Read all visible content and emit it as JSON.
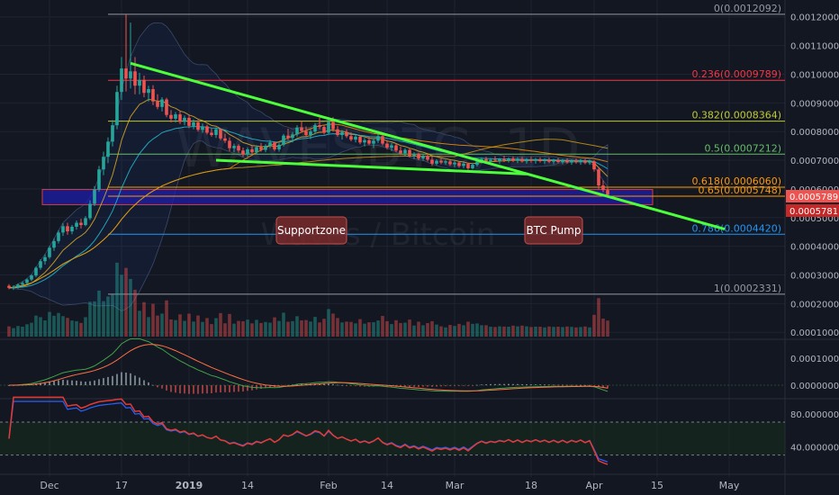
{
  "chart_data": {
    "type": "candlestick",
    "title": "WAVESBTC, 1D",
    "watermark": {
      "symbol": "WAVESBTC, 1D",
      "description": "Waves / Bitcoin"
    },
    "colors": {
      "background": "#131722",
      "up": "#26a69a",
      "down": "#ef5350",
      "trendline": "#4cff3a",
      "support_zone": "#1e1ea8",
      "support_zone_border": "#d04040",
      "annotation_bg": "#7a2a2a"
    },
    "x_ticks": [
      {
        "label": "Dec",
        "date": "2018-12-01"
      },
      {
        "label": "17",
        "date": "2018-12-17"
      },
      {
        "label": "2019",
        "date": "2019-01-01"
      },
      {
        "label": "14",
        "date": "2019-01-14"
      },
      {
        "label": "Feb",
        "date": "2019-02-01"
      },
      {
        "label": "14",
        "date": "2019-02-14"
      },
      {
        "label": "Mar",
        "date": "2019-03-01"
      },
      {
        "label": "18",
        "date": "2019-03-18"
      },
      {
        "label": "Apr",
        "date": "2019-04-01"
      },
      {
        "label": "15",
        "date": "2019-04-15"
      },
      {
        "label": "May",
        "date": "2019-05-01"
      }
    ],
    "price_axis": {
      "range": [
        8.5e-05,
        0.00124
      ],
      "ticks": [
        "0.0012000",
        "0.0011000",
        "0.0010000",
        "0.0009000",
        "0.0008000",
        "0.0007000",
        "0.0006000",
        "0.0005000",
        "0.0004000",
        "0.0003000",
        "0.0002000",
        "0.0001000"
      ],
      "current_price_labels": [
        "0.0005789",
        "0.0005781"
      ]
    },
    "fibonacci": [
      {
        "label": "0(0.0012092)",
        "value": 0.0012092,
        "color": "#9598a1"
      },
      {
        "label": "0.236(0.0009789)",
        "value": 0.0009789,
        "color": "#f23645"
      },
      {
        "label": "0.382(0.0008364)",
        "value": 0.0008364,
        "color": "#c0ca33"
      },
      {
        "label": "0.5(0.0007212)",
        "value": 0.0007212,
        "color": "#66bb6a"
      },
      {
        "label": "0.618(0.0006060)",
        "value": 0.000606,
        "color": "#ff9800"
      },
      {
        "label": "0.65(0.0005748)",
        "value": 0.0005748,
        "color": "#ff9800"
      },
      {
        "label": "0.786(0.0004420)",
        "value": 0.000442,
        "color": "#2196f3"
      },
      {
        "label": "1(0.0002331)",
        "value": 0.0002331,
        "color": "#9598a1"
      }
    ],
    "annotations": [
      {
        "text": "Supportzone"
      },
      {
        "text": "BTC Pump"
      }
    ],
    "support_zone": {
      "from": 0.000545,
      "to": 0.000598
    },
    "trendlines": [
      {
        "name": "upper",
        "p1": {
          "date": "2018-12-19",
          "price": 0.001038
        },
        "p2": {
          "date": "2019-04-30",
          "price": 0.00046
        }
      },
      {
        "name": "lower",
        "p1": {
          "date": "2019-01-07",
          "price": 0.0007
        },
        "p2": {
          "date": "2019-03-17",
          "price": 0.000652
        }
      }
    ],
    "candles": [
      [
        "2018-11-22",
        0.000262,
        0.000268,
        0.00025,
        0.000255
      ],
      [
        "2018-11-23",
        0.000255,
        0.000264,
        0.000248,
        0.000258
      ],
      [
        "2018-11-24",
        0.000258,
        0.00027,
        0.000252,
        0.000266
      ],
      [
        "2018-11-25",
        0.000266,
        0.000278,
        0.00026,
        0.000272
      ],
      [
        "2018-11-26",
        0.000272,
        0.000288,
        0.000268,
        0.000284
      ],
      [
        "2018-11-27",
        0.000284,
        0.000302,
        0.000278,
        0.000298
      ],
      [
        "2018-11-28",
        0.000298,
        0.00033,
        0.000292,
        0.000325
      ],
      [
        "2018-11-29",
        0.000325,
        0.000355,
        0.000318,
        0.000348
      ],
      [
        "2018-11-30",
        0.000348,
        0.000372,
        0.000336,
        0.000362
      ],
      [
        "2018-12-01",
        0.000362,
        0.000402,
        0.000356,
        0.000395
      ],
      [
        "2018-12-02",
        0.000395,
        0.000428,
        0.000384,
        0.000418
      ],
      [
        "2018-12-03",
        0.000418,
        0.000456,
        0.00041,
        0.000448
      ],
      [
        "2018-12-04",
        0.000448,
        0.00048,
        0.000436,
        0.00047
      ],
      [
        "2018-12-05",
        0.00047,
        0.000482,
        0.00044,
        0.000452
      ],
      [
        "2018-12-06",
        0.000452,
        0.000474,
        0.000442,
        0.000468
      ],
      [
        "2018-12-07",
        0.000468,
        0.00049,
        0.000458,
        0.000482
      ],
      [
        "2018-12-08",
        0.000482,
        0.000496,
        0.000462,
        0.000474
      ],
      [
        "2018-12-09",
        0.000474,
        0.000505,
        0.00047,
        0.000498
      ],
      [
        "2018-12-10",
        0.000498,
        0.00056,
        0.000492,
        0.000548
      ],
      [
        "2018-12-11",
        0.000548,
        0.00061,
        0.00054,
        0.000598
      ],
      [
        "2018-12-12",
        0.000598,
        0.00068,
        0.00059,
        0.000668
      ],
      [
        "2018-12-13",
        0.000668,
        0.00073,
        0.000648,
        0.000712
      ],
      [
        "2018-12-14",
        0.000712,
        0.00078,
        0.00069,
        0.000765
      ],
      [
        "2018-12-15",
        0.000765,
        0.00084,
        0.000748,
        0.000822
      ],
      [
        "2018-12-16",
        0.000822,
        0.00096,
        0.000808,
        0.000938
      ],
      [
        "2018-12-17",
        0.000938,
        0.00106,
        0.00091,
        0.00102
      ],
      [
        "2018-12-18",
        0.00102,
        0.001209,
        0.00094,
        0.000985
      ],
      [
        "2018-12-19",
        0.000985,
        0.00118,
        0.00095,
        0.00101
      ],
      [
        "2018-12-20",
        0.00101,
        0.00106,
        0.00093,
        0.00096
      ],
      [
        "2018-12-21",
        0.00096,
        0.001005,
        0.00093,
        0.00098
      ],
      [
        "2018-12-22",
        0.00098,
        0.000995,
        0.00092,
        0.000935
      ],
      [
        "2018-12-23",
        0.000935,
        0.00096,
        0.000905,
        0.000948
      ],
      [
        "2018-12-24",
        0.000948,
        0.000962,
        0.000892,
        0.000905
      ],
      [
        "2018-12-25",
        0.000905,
        0.00093,
        0.000878,
        0.000886
      ],
      [
        "2018-12-26",
        0.000886,
        0.00092,
        0.00087,
        0.000912
      ],
      [
        "2018-12-27",
        0.000912,
        0.000918,
        0.00085,
        0.000858
      ],
      [
        "2018-12-28",
        0.000858,
        0.000875,
        0.000832,
        0.000845
      ],
      [
        "2018-12-29",
        0.000845,
        0.000868,
        0.000832,
        0.00086
      ],
      [
        "2018-12-30",
        0.00086,
        0.000872,
        0.000826,
        0.000834
      ],
      [
        "2018-12-31",
        0.000834,
        0.000856,
        0.000822,
        0.000848
      ],
      [
        "2019-01-01",
        0.000848,
        0.000858,
        0.000812,
        0.00082
      ],
      [
        "2019-01-02",
        0.00082,
        0.000842,
        0.000808,
        0.000832
      ],
      [
        "2019-01-03",
        0.000832,
        0.00084,
        0.0008,
        0.000806
      ],
      [
        "2019-01-04",
        0.000806,
        0.000828,
        0.000796,
        0.000818
      ],
      [
        "2019-01-05",
        0.000818,
        0.000824,
        0.00079,
        0.000796
      ],
      [
        "2019-01-06",
        0.000796,
        0.00081,
        0.000782,
        0.000788
      ],
      [
        "2019-01-07",
        0.000788,
        0.000815,
        0.000778,
        0.000808
      ],
      [
        "2019-01-08",
        0.000808,
        0.000812,
        0.00077,
        0.000776
      ],
      [
        "2019-01-09",
        0.000776,
        0.000792,
        0.00076,
        0.000768
      ],
      [
        "2019-01-10",
        0.000768,
        0.00078,
        0.000732,
        0.000742
      ],
      [
        "2019-01-11",
        0.000742,
        0.000758,
        0.000728,
        0.00075
      ],
      [
        "2019-01-12",
        0.00075,
        0.000756,
        0.000726,
        0.000734
      ],
      [
        "2019-01-13",
        0.000734,
        0.000744,
        0.000712,
        0.00072
      ],
      [
        "2019-01-14",
        0.00072,
        0.000745,
        0.000712,
        0.000738
      ],
      [
        "2019-01-15",
        0.000738,
        0.00075,
        0.000722,
        0.000728
      ],
      [
        "2019-01-16",
        0.000728,
        0.000752,
        0.00072,
        0.000746
      ],
      [
        "2019-01-17",
        0.000746,
        0.00076,
        0.00073,
        0.000736
      ],
      [
        "2019-01-18",
        0.000736,
        0.000756,
        0.000728,
        0.00075
      ],
      [
        "2019-01-19",
        0.00075,
        0.00077,
        0.000742,
        0.000762
      ],
      [
        "2019-01-20",
        0.000762,
        0.000766,
        0.000732,
        0.000738
      ],
      [
        "2019-01-21",
        0.000738,
        0.00076,
        0.00073,
        0.000754
      ],
      [
        "2019-01-22",
        0.000754,
        0.000792,
        0.000748,
        0.000786
      ],
      [
        "2019-01-23",
        0.000786,
        0.00081,
        0.00077,
        0.000778
      ],
      [
        "2019-01-24",
        0.000778,
        0.000798,
        0.000762,
        0.00079
      ],
      [
        "2019-01-25",
        0.00079,
        0.000822,
        0.000782,
        0.000814
      ],
      [
        "2019-01-26",
        0.000814,
        0.000836,
        0.000796,
        0.000802
      ],
      [
        "2019-01-27",
        0.000802,
        0.000818,
        0.00078,
        0.000788
      ],
      [
        "2019-01-28",
        0.000788,
        0.000808,
        0.000774,
        0.0008
      ],
      [
        "2019-01-29",
        0.0008,
        0.00083,
        0.00079,
        0.000822
      ],
      [
        "2019-01-30",
        0.000822,
        0.000848,
        0.000808,
        0.000816
      ],
      [
        "2019-01-31",
        0.000816,
        0.000824,
        0.00079,
        0.000796
      ],
      [
        "2019-02-01",
        0.000796,
        0.000842,
        0.00079,
        0.000834
      ],
      [
        "2019-02-02",
        0.000834,
        0.00085,
        0.0008,
        0.000808
      ],
      [
        "2019-02-03",
        0.000808,
        0.00082,
        0.000782,
        0.000788
      ],
      [
        "2019-02-04",
        0.000788,
        0.000805,
        0.000772,
        0.000798
      ],
      [
        "2019-02-05",
        0.000798,
        0.000808,
        0.000778,
        0.000784
      ],
      [
        "2019-02-06",
        0.000784,
        0.000798,
        0.000766,
        0.000772
      ],
      [
        "2019-02-07",
        0.000772,
        0.00079,
        0.000762,
        0.000782
      ],
      [
        "2019-02-08",
        0.000782,
        0.000788,
        0.000756,
        0.000762
      ],
      [
        "2019-02-09",
        0.000762,
        0.000778,
        0.000748,
        0.00077
      ],
      [
        "2019-02-10",
        0.00077,
        0.000782,
        0.000752,
        0.000758
      ],
      [
        "2019-02-11",
        0.000758,
        0.000776,
        0.000742,
        0.000768
      ],
      [
        "2019-02-12",
        0.000768,
        0.000792,
        0.00076,
        0.000784
      ],
      [
        "2019-02-13",
        0.000784,
        0.00079,
        0.000752,
        0.000758
      ],
      [
        "2019-02-14",
        0.000758,
        0.00077,
        0.000738,
        0.000744
      ],
      [
        "2019-02-15",
        0.000744,
        0.00076,
        0.000732,
        0.000752
      ],
      [
        "2019-02-16",
        0.000752,
        0.000758,
        0.000728,
        0.000734
      ],
      [
        "2019-02-17",
        0.000734,
        0.000748,
        0.000718,
        0.000724
      ],
      [
        "2019-02-18",
        0.000724,
        0.000742,
        0.000714,
        0.000736
      ],
      [
        "2019-02-19",
        0.000736,
        0.00074,
        0.00071,
        0.000716
      ],
      [
        "2019-02-20",
        0.000716,
        0.000728,
        0.000704,
        0.000722
      ],
      [
        "2019-02-21",
        0.000722,
        0.000726,
        0.0007,
        0.000706
      ],
      [
        "2019-02-22",
        0.000706,
        0.00072,
        0.000698,
        0.000714
      ],
      [
        "2019-02-23",
        0.000714,
        0.000722,
        0.000696,
        0.000702
      ],
      [
        "2019-02-24",
        0.000702,
        0.000712,
        0.00068,
        0.000688
      ],
      [
        "2019-02-25",
        0.000688,
        0.000704,
        0.000682,
        0.000698
      ],
      [
        "2019-02-26",
        0.000698,
        0.000706,
        0.000686,
        0.000692
      ],
      [
        "2019-02-27",
        0.000692,
        0.000702,
        0.000684,
        0.000696
      ],
      [
        "2019-02-28",
        0.000696,
        0.0007,
        0.00068,
        0.000686
      ],
      [
        "2019-03-01",
        0.000686,
        0.000698,
        0.000676,
        0.000692
      ],
      [
        "2019-03-02",
        0.000692,
        0.000696,
        0.000674,
        0.00068
      ],
      [
        "2019-03-03",
        0.00068,
        0.000694,
        0.000672,
        0.000688
      ],
      [
        "2019-03-04",
        0.000688,
        0.000692,
        0.000666,
        0.000672
      ],
      [
        "2019-03-05",
        0.000672,
        0.00069,
        0.000668,
        0.000684
      ],
      [
        "2019-03-06",
        0.000684,
        0.000702,
        0.000678,
        0.000696
      ],
      [
        "2019-03-07",
        0.000696,
        0.00071,
        0.000688,
        0.000704
      ],
      [
        "2019-03-08",
        0.000704,
        0.000712,
        0.00069,
        0.000696
      ],
      [
        "2019-03-09",
        0.000696,
        0.000708,
        0.00069,
        0.000702
      ],
      [
        "2019-03-10",
        0.000702,
        0.000714,
        0.000694,
        0.000698
      ],
      [
        "2019-03-11",
        0.000698,
        0.000708,
        0.000688,
        0.000704
      ],
      [
        "2019-03-12",
        0.000704,
        0.000716,
        0.000694,
        0.0007
      ],
      [
        "2019-03-13",
        0.0007,
        0.00071,
        0.000692,
        0.000706
      ],
      [
        "2019-03-14",
        0.000706,
        0.000714,
        0.000694,
        0.000698
      ],
      [
        "2019-03-15",
        0.000698,
        0.00071,
        0.00069,
        0.000704
      ],
      [
        "2019-03-16",
        0.000704,
        0.000712,
        0.000692,
        0.000696
      ],
      [
        "2019-03-17",
        0.000696,
        0.000708,
        0.000688,
        0.000702
      ],
      [
        "2019-03-18",
        0.000702,
        0.000712,
        0.000692,
        0.000698
      ],
      [
        "2019-03-19",
        0.000698,
        0.000708,
        0.000688,
        0.000703
      ],
      [
        "2019-03-20",
        0.000703,
        0.00071,
        0.000692,
        0.000697
      ],
      [
        "2019-03-21",
        0.000697,
        0.000706,
        0.000688,
        0.000701
      ],
      [
        "2019-03-22",
        0.000701,
        0.000709,
        0.00069,
        0.000695
      ],
      [
        "2019-03-23",
        0.000695,
        0.000705,
        0.000686,
        0.0007
      ],
      [
        "2019-03-24",
        0.0007,
        0.000708,
        0.00069,
        0.000694
      ],
      [
        "2019-03-25",
        0.000694,
        0.000704,
        0.000686,
        0.000699
      ],
      [
        "2019-03-26",
        0.000699,
        0.000707,
        0.000688,
        0.000693
      ],
      [
        "2019-03-27",
        0.000693,
        0.000703,
        0.000684,
        0.000698
      ],
      [
        "2019-03-28",
        0.000698,
        0.000706,
        0.000688,
        0.000694
      ],
      [
        "2019-03-29",
        0.000694,
        0.000704,
        0.000684,
        0.000698
      ],
      [
        "2019-03-30",
        0.000698,
        0.000705,
        0.000686,
        0.000692
      ],
      [
        "2019-03-31",
        0.000692,
        0.000702,
        0.000684,
        0.000696
      ],
      [
        "2019-04-01",
        0.000696,
        0.0007,
        0.00066,
        0.000668
      ],
      [
        "2019-04-02",
        0.000668,
        0.000676,
        0.0006,
        0.000612
      ],
      [
        "2019-04-03",
        0.000612,
        0.00063,
        0.000588,
        0.000596
      ],
      [
        "2019-04-04",
        0.000596,
        0.000604,
        0.000574,
        0.000579
      ]
    ],
    "volume_pane": {
      "ymax": 0.0005,
      "note": "Volume bars colored by candle direction"
    },
    "macd_pane": {
      "ticks": [
        "0.0001000",
        "0.0000000"
      ],
      "range": [
        -4e-05,
        0.00016
      ]
    },
    "rsi_pane": {
      "ticks": [
        "80.0000000",
        "40.0000000"
      ],
      "range": [
        10,
        95
      ],
      "upper": 70,
      "lower": 30
    }
  }
}
